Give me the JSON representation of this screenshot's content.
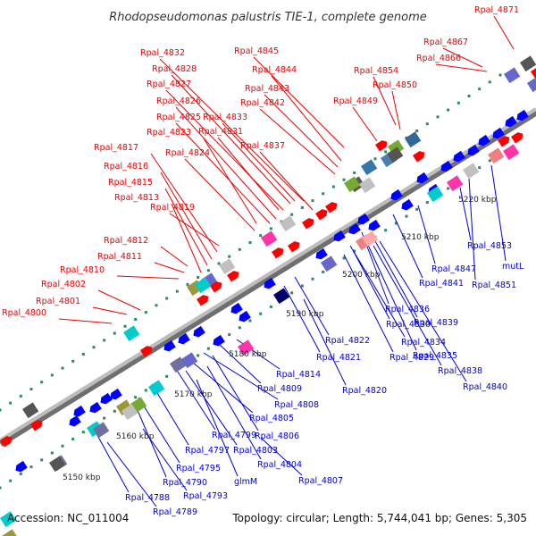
{
  "title": "Rhodopseudomonas palustris TIE-1, complete genome",
  "footer": {
    "accession": "Accession: NC_011004",
    "summary": "Topology: circular; Length: 5,744,041 bp; Genes: 5,305"
  },
  "colors": {
    "forward_label": "#ee0000",
    "reverse_label": "#0000dd",
    "backbone": "#8a8a8a",
    "tick": "#2e8b57"
  },
  "ticks": [
    "5150 kbp",
    "5160 kbp",
    "5170 kbp",
    "5180 kbp",
    "5190 kbp",
    "5200 kbp",
    "5210 kbp",
    "5220 kbp"
  ],
  "forward_labels": [
    "Rpal_4871",
    "Rpal_4867",
    "Rpal_4866",
    "Rpal_4854",
    "Rpal_4850",
    "Rpal_4849",
    "Rpal_4845",
    "Rpal_4844",
    "Rpal_4843",
    "Rpal_4842",
    "Rpal_4837",
    "Rpal_4832",
    "Rpal_4828",
    "Rpal_4827",
    "Rpal_4826",
    "Rpal_4825",
    "Rpal_4833",
    "Rpal_4831",
    "Rpal_4823",
    "Rpal_4824",
    "Rpal_4817",
    "Rpal_4816",
    "Rpal_4815",
    "Rpal_4813",
    "Rpal_4819",
    "Rpal_4812",
    "Rpal_4811",
    "Rpal_4810",
    "Rpal_4802",
    "Rpal_4801",
    "Rpal_4800"
  ],
  "reverse_labels": [
    "Rpal_4853",
    "mutL",
    "Rpal_4851",
    "Rpal_4847",
    "Rpal_4841",
    "Rpal_4836",
    "Rpal_4839",
    "Rpal_4830",
    "Rpal_4834",
    "Rpal_4835",
    "Rpal_4838",
    "Rpal_4840",
    "Rpal_4822",
    "Rpal_4821",
    "Rpal_4829",
    "Rpal_4820",
    "Rpal_4814",
    "Rpal_4809",
    "Rpal_4808",
    "Rpal_4805",
    "Rpal_4806",
    "Rpal_4799",
    "Rpal_4803",
    "Rpal_4797",
    "Rpal_4804",
    "Rpal_4795",
    "glmM",
    "Rpal_4807",
    "Rpal_4790",
    "Rpal_4793",
    "Rpal_4788",
    "Rpal_4789"
  ]
}
